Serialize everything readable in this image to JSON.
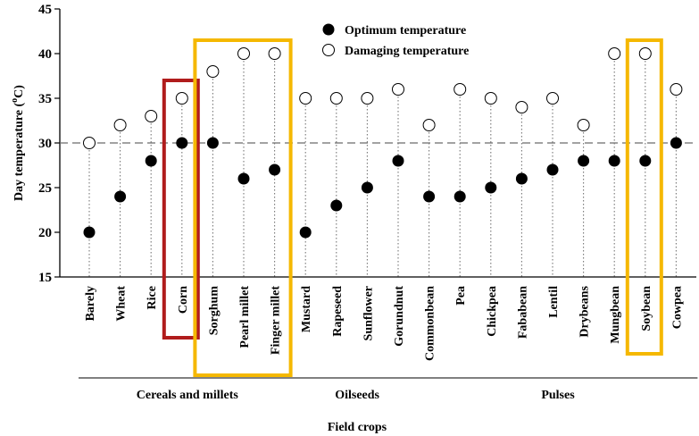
{
  "chart_data": {
    "type": "scatter",
    "xlabel": "Field crops",
    "ylabel": "Day temperature (°C)",
    "ylabel_parts": [
      "Day temperature (",
      "o",
      "C)"
    ],
    "ylim": [
      15,
      45
    ],
    "yticks": [
      15,
      20,
      25,
      30,
      35,
      40,
      45
    ],
    "reference_line": 30,
    "categories": [
      "Barely",
      "Wheat",
      "Rice",
      "Corn",
      "Sorghum",
      "Pearl millet",
      "Finger millet",
      "Mustard",
      "Rapeseed",
      "Sunflower",
      "Gorundnut",
      "Commonbean",
      "Pea",
      "Chickpea",
      "Fababean",
      "Lentil",
      "Drybeans",
      "Mungbean",
      "Soybean",
      "Cowpea"
    ],
    "series": [
      {
        "name": "Optimum temperature",
        "marker": "filled-circle",
        "values": [
          20,
          24,
          28,
          30,
          30,
          26,
          27,
          20,
          23,
          25,
          28,
          24,
          24,
          25,
          26,
          27,
          28,
          28,
          28,
          30
        ]
      },
      {
        "name": "Damaging temperature",
        "marker": "open-circle",
        "values": [
          30,
          32,
          33,
          35,
          38,
          40,
          40,
          35,
          35,
          35,
          36,
          32,
          36,
          35,
          34,
          35,
          32,
          40,
          40,
          36
        ]
      }
    ],
    "groups": [
      {
        "label": "Cereals and millets",
        "first": 0,
        "last": 6
      },
      {
        "label": "Oilseeds",
        "first": 7,
        "last": 10
      },
      {
        "label": "Pulses",
        "first": 11,
        "last": 19
      }
    ],
    "highlight_boxes": [
      {
        "color": "#b01c1c",
        "first": 3,
        "last": 3
      },
      {
        "color": "#f5b800",
        "first": 4,
        "last": 6
      },
      {
        "color": "#f5b800",
        "first": 18,
        "last": 18
      }
    ],
    "legend_position": "top-center",
    "grid": false
  }
}
